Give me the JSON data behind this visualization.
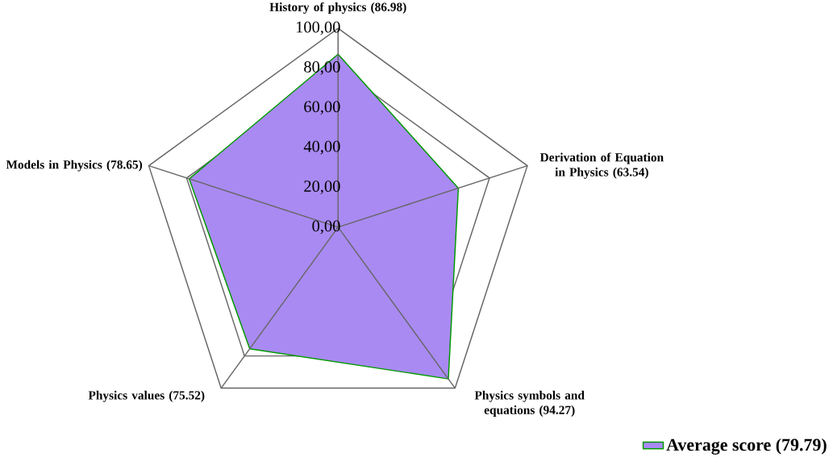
{
  "chart_data": {
    "type": "radar",
    "categories": [
      "History of physics (86.98)",
      "Derivation of Equation in Physics (63.54)",
      "Physics symbols and equations (94.27)",
      "Physics values (75.52)",
      "Models in Physics (78.65)"
    ],
    "series": [
      {
        "name": "Average score (79.79)",
        "color": "#a98af2",
        "values": [
          86.98,
          63.54,
          94.27,
          75.52,
          78.65
        ]
      }
    ],
    "ylim": [
      0,
      100
    ],
    "yticks": [
      {
        "value": 0,
        "label": "0,00"
      },
      {
        "value": 20,
        "label": "20,00"
      },
      {
        "value": 40,
        "label": "40,00"
      },
      {
        "value": 60,
        "label": "60,00"
      },
      {
        "value": 80,
        "label": "80,00"
      },
      {
        "value": 100,
        "label": "100,00"
      }
    ],
    "grid": true,
    "legend": "bottom right"
  }
}
